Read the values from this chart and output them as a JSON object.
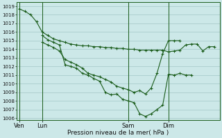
{
  "background_color": "#cce8e8",
  "grid_color": "#aacccc",
  "line_color": "#1a5c1a",
  "xlabel": "Pression niveau de la mer( hPa )",
  "ylim_min": 1005.8,
  "ylim_max": 1019.5,
  "yticks": [
    1006,
    1007,
    1008,
    1009,
    1010,
    1011,
    1012,
    1013,
    1014,
    1015,
    1016,
    1017,
    1018,
    1019
  ],
  "xtick_labels": [
    "Ven",
    "Lun",
    "Sam",
    "Dim"
  ],
  "xtick_positions": [
    0,
    8,
    38,
    52
  ],
  "vline_positions": [
    0,
    8,
    38,
    52
  ],
  "xlim_min": -1,
  "xlim_max": 70,
  "seriesA_x": [
    0,
    2,
    4,
    6,
    8,
    10,
    12,
    14,
    16,
    18,
    20,
    22,
    24,
    26,
    28,
    30,
    32,
    34,
    36,
    38,
    40,
    42,
    44,
    46,
    48,
    50,
    52,
    54,
    56,
    58,
    60,
    62,
    64,
    66,
    68
  ],
  "seriesA_y": [
    1018.7,
    1018.4,
    1018.0,
    1017.2,
    1016.0,
    1015.6,
    1015.2,
    1015.0,
    1014.8,
    1014.6,
    1014.5,
    1014.4,
    1014.4,
    1014.3,
    1014.3,
    1014.2,
    1014.2,
    1014.1,
    1014.1,
    1014.0,
    1014.0,
    1013.9,
    1013.9,
    1013.9,
    1013.9,
    1013.9,
    1013.7,
    1013.8,
    1013.9,
    1014.5,
    1014.6,
    1014.6,
    1013.8,
    1014.3,
    1014.3
  ],
  "seriesB_x": [
    8,
    10,
    12,
    14,
    16,
    18,
    20,
    22,
    24,
    26,
    28,
    30,
    32,
    34,
    36,
    38,
    40,
    42,
    44,
    46,
    48,
    50,
    52,
    54,
    56,
    58,
    60
  ],
  "seriesB_y": [
    1015.6,
    1015.1,
    1014.8,
    1014.5,
    1012.2,
    1012.0,
    1011.8,
    1011.2,
    1011.0,
    1010.6,
    1010.3,
    1009.0,
    1008.7,
    1008.8,
    1008.2,
    1008.0,
    1007.8,
    1006.5,
    1006.2,
    1006.5,
    1007.0,
    1007.5,
    1011.1,
    1011.0,
    1011.2,
    1011.0,
    1011.0
  ],
  "seriesC_x": [
    8,
    10,
    12,
    14,
    16,
    18,
    20,
    22,
    24,
    26,
    28,
    30,
    32,
    34,
    36,
    38,
    40,
    42,
    44,
    46,
    48,
    50,
    52,
    54,
    56
  ],
  "seriesC_y": [
    1014.8,
    1014.5,
    1014.2,
    1013.8,
    1012.8,
    1012.5,
    1012.2,
    1011.8,
    1011.2,
    1011.0,
    1010.8,
    1010.5,
    1010.2,
    1009.7,
    1009.5,
    1009.3,
    1009.0,
    1009.2,
    1008.8,
    1009.5,
    1011.2,
    1013.5,
    1015.0,
    1015.0,
    1015.0
  ]
}
